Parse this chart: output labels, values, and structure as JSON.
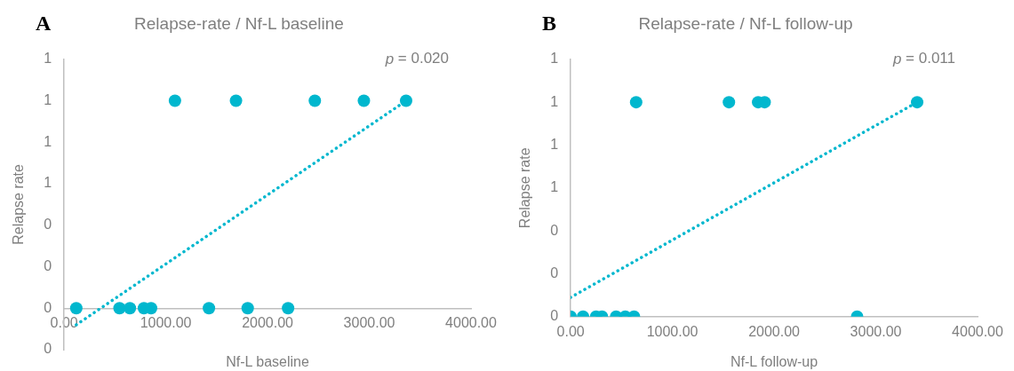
{
  "chart_data": [
    {
      "type": "scatter",
      "title": "Relapse-rate / Nf-L baseline",
      "xlabel": "Nf-L baseline",
      "ylabel": "Relapse rate",
      "annotations": [
        "A",
        "p = 0.020"
      ],
      "marker": "circle",
      "xlim": [
        0,
        4000
      ],
      "xticks": [
        {
          "value": 0,
          "label": "0.00"
        },
        {
          "value": 1000,
          "label": "1000.00"
        },
        {
          "value": 2000,
          "label": "2000.00"
        },
        {
          "value": 3000,
          "label": "3000.00"
        },
        {
          "value": 4000,
          "label": "4000.00"
        }
      ],
      "ylim": [
        -0.2,
        1.2
      ],
      "yticks": [
        {
          "value": -0.2,
          "label": "0"
        },
        {
          "value": 0,
          "label": "0"
        },
        {
          "value": 0.2,
          "label": "0"
        },
        {
          "value": 0.4,
          "label": "0"
        },
        {
          "value": 0.6,
          "label": "1"
        },
        {
          "value": 0.8,
          "label": "1"
        },
        {
          "value": 1,
          "label": "1"
        },
        {
          "value": 1.2,
          "label": "1"
        }
      ],
      "series": [
        {
          "color": "#00b7ce",
          "x": [
            120,
            545,
            647,
            785,
            855,
            1424,
            1805,
            2202,
            1090,
            1690,
            2465,
            2947,
            3362
          ],
          "values": [
            0,
            0,
            0,
            0,
            0,
            0,
            0,
            0,
            1,
            1,
            1,
            1,
            1
          ]
        },
        {
          "type": "line",
          "color": "#00b7ce",
          "x": [
            120,
            3362
          ],
          "values": [
            -0.08,
            1
          ],
          "line_style": "dotted",
          "marker": "none"
        }
      ]
    },
    {
      "type": "scatter",
      "title": "Relapse-rate / Nf-L follow-up",
      "xlabel": "Nf-L follow-up",
      "ylabel": "Relapse rate",
      "annotations": [
        "B",
        "p = 0.011"
      ],
      "marker": "circle",
      "xlim": [
        0,
        4000
      ],
      "xticks": [
        {
          "value": 0,
          "label": "0.00"
        },
        {
          "value": 1000,
          "label": "1000.00"
        },
        {
          "value": 2000,
          "label": "2000.00"
        },
        {
          "value": 3000,
          "label": "3000.00"
        },
        {
          "value": 4000,
          "label": "4000.00"
        }
      ],
      "ylim": [
        0,
        1.2
      ],
      "yticks": [
        {
          "value": 0,
          "label": "0"
        },
        {
          "value": 0.2,
          "label": "0"
        },
        {
          "value": 0.4,
          "label": "0"
        },
        {
          "value": 0.6,
          "label": "1"
        },
        {
          "value": 0.8,
          "label": "1"
        },
        {
          "value": 1,
          "label": "1"
        },
        {
          "value": 1.2,
          "label": "1"
        }
      ],
      "series": [
        {
          "color": "#00b7ce",
          "x": [
            0,
            122,
            250,
            308,
            447,
            537,
            623,
            2816,
            644,
            1556,
            1843,
            1907,
            3406
          ],
          "values": [
            0,
            0,
            0,
            0,
            0,
            0,
            0,
            0,
            1,
            1,
            1,
            1,
            1
          ]
        },
        {
          "type": "line",
          "color": "#00b7ce",
          "x": [
            0,
            3406
          ],
          "values": [
            0.09,
            1
          ],
          "line_style": "dotted",
          "marker": "none"
        }
      ]
    }
  ]
}
